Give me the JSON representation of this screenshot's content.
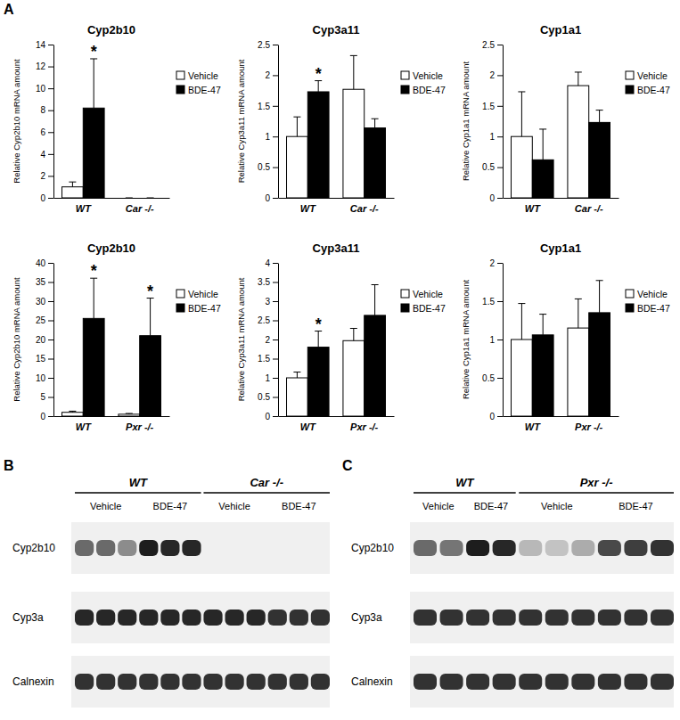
{
  "panel_labels": [
    "A",
    "B",
    "C"
  ],
  "chart_data": [
    {
      "type": "bar",
      "title": "Cyp2b10",
      "y_label": "Relative Cyp2b10 mRNA amount",
      "categories": [
        "WT",
        "Car -/-"
      ],
      "series": [
        {
          "name": "Vehicle",
          "color": "#ffffff",
          "values": [
            1.0,
            0
          ],
          "errors": [
            0.45,
            0
          ]
        },
        {
          "name": "BDE-47",
          "color": "#000000",
          "values": [
            8.2,
            0
          ],
          "errors": [
            4.5,
            0
          ]
        }
      ],
      "ylim": [
        0,
        14
      ],
      "yticks": [
        0,
        2,
        4,
        6,
        8,
        10,
        12,
        14
      ],
      "legend": "right",
      "annotations": [
        {
          "text": "*",
          "series": 1,
          "category": 0
        }
      ]
    },
    {
      "type": "bar",
      "title": "Cyp3a11",
      "y_label": "Relative Cyp3a11 mRNA amount",
      "categories": [
        "WT",
        "Car -/-"
      ],
      "series": [
        {
          "name": "Vehicle",
          "color": "#ffffff",
          "values": [
            1.0,
            1.77
          ],
          "errors": [
            0.32,
            0.55
          ]
        },
        {
          "name": "BDE-47",
          "color": "#000000",
          "values": [
            1.73,
            1.14
          ],
          "errors": [
            0.18,
            0.15
          ]
        }
      ],
      "ylim": [
        0,
        2.5
      ],
      "yticks": [
        0,
        0.5,
        1,
        1.5,
        2,
        2.5
      ],
      "legend": "right",
      "annotations": [
        {
          "text": "*",
          "series": 1,
          "category": 0
        }
      ]
    },
    {
      "type": "bar",
      "title": "Cyp1a1",
      "y_label": "Relative Cyp1a1 mRNA amount",
      "categories": [
        "WT",
        "Car -/-"
      ],
      "series": [
        {
          "name": "Vehicle",
          "color": "#ffffff",
          "values": [
            1.0,
            1.83
          ],
          "errors": [
            0.73,
            0.22
          ]
        },
        {
          "name": "BDE-47",
          "color": "#000000",
          "values": [
            0.62,
            1.23
          ],
          "errors": [
            0.5,
            0.2
          ]
        }
      ],
      "ylim": [
        0,
        2.5
      ],
      "yticks": [
        0,
        0.5,
        1,
        1.5,
        2,
        2.5
      ],
      "legend": "right",
      "annotations": []
    },
    {
      "type": "bar",
      "title": "Cyp2b10",
      "y_label": "Relative Cyp2b10 mRNA amount",
      "categories": [
        "WT",
        "Pxr -/-"
      ],
      "series": [
        {
          "name": "Vehicle",
          "color": "#ffffff",
          "values": [
            1.0,
            0.5
          ],
          "errors": [
            0.3,
            0.2
          ]
        },
        {
          "name": "BDE-47",
          "color": "#000000",
          "values": [
            25.5,
            21
          ],
          "errors": [
            10.5,
            9.8
          ]
        }
      ],
      "ylim": [
        0,
        40
      ],
      "yticks": [
        0,
        5,
        10,
        15,
        20,
        25,
        30,
        35,
        40
      ],
      "legend": "right",
      "annotations": [
        {
          "text": "*",
          "series": 1,
          "category": 0
        },
        {
          "text": "*",
          "series": 1,
          "category": 1
        }
      ]
    },
    {
      "type": "bar",
      "title": "Cyp3a11",
      "y_label": "Relative Cyp3a11 mRNA amount",
      "categories": [
        "WT",
        "Pxr -/-"
      ],
      "series": [
        {
          "name": "Vehicle",
          "color": "#ffffff",
          "values": [
            1.0,
            1.97
          ],
          "errors": [
            0.15,
            0.32
          ]
        },
        {
          "name": "BDE-47",
          "color": "#000000",
          "values": [
            1.8,
            2.63
          ],
          "errors": [
            0.42,
            0.8
          ]
        }
      ],
      "ylim": [
        0,
        4
      ],
      "yticks": [
        0,
        0.5,
        1,
        1.5,
        2,
        2.5,
        3,
        3.5,
        4
      ],
      "legend": "right",
      "annotations": [
        {
          "text": "*",
          "series": 1,
          "category": 0
        }
      ]
    },
    {
      "type": "bar",
      "title": "Cyp1a1",
      "y_label": "Relative Cyp1a1 mRNA amount",
      "categories": [
        "WT",
        "Pxr -/-"
      ],
      "series": [
        {
          "name": "Vehicle",
          "color": "#ffffff",
          "values": [
            1.0,
            1.15
          ],
          "errors": [
            0.47,
            0.38
          ]
        },
        {
          "name": "BDE-47",
          "color": "#000000",
          "values": [
            1.06,
            1.35
          ],
          "errors": [
            0.27,
            0.42
          ]
        }
      ],
      "ylim": [
        0,
        2
      ],
      "yticks": [
        0,
        0.5,
        1,
        1.5,
        2
      ],
      "legend": "right",
      "annotations": []
    }
  ],
  "blots": [
    {
      "groups": [
        {
          "label": "WT",
          "treatments": [
            {
              "label": "Vehicle",
              "lanes": 3
            },
            {
              "label": "BDE-47",
              "lanes": 3
            }
          ]
        },
        {
          "label": "Car -/-",
          "treatments": [
            {
              "label": "Vehicle",
              "lanes": 3
            },
            {
              "label": "BDE-47",
              "lanes": 3
            }
          ]
        }
      ],
      "rows": [
        {
          "label": "Cyp2b10",
          "intensity": [
            0.6,
            0.6,
            0.45,
            0.95,
            0.9,
            0.9,
            0,
            0,
            0,
            0,
            0,
            0
          ]
        },
        {
          "label": "Cyp3a",
          "intensity": [
            0.9,
            0.9,
            0.9,
            0.9,
            0.9,
            0.9,
            0.9,
            0.9,
            0.9,
            0.85,
            0.85,
            0.85
          ]
        },
        {
          "label": "Calnexin",
          "intensity": [
            0.85,
            0.85,
            0.85,
            0.85,
            0.85,
            0.85,
            0.85,
            0.85,
            0.85,
            0.85,
            0.85,
            0.85
          ]
        }
      ]
    },
    {
      "groups": [
        {
          "label": "WT",
          "treatments": [
            {
              "label": "Vehicle",
              "lanes": 2
            },
            {
              "label": "BDE-47",
              "lanes": 2
            }
          ]
        },
        {
          "label": "Pxr -/-",
          "treatments": [
            {
              "label": "Vehicle",
              "lanes": 3
            },
            {
              "label": "BDE-47",
              "lanes": 3
            }
          ]
        }
      ],
      "rows": [
        {
          "label": "Cyp2b10",
          "intensity": [
            0.6,
            0.55,
            0.95,
            0.9,
            0.25,
            0.2,
            0.3,
            0.75,
            0.8,
            0.85
          ]
        },
        {
          "label": "Cyp3a",
          "intensity": [
            0.85,
            0.85,
            0.85,
            0.85,
            0.85,
            0.85,
            0.85,
            0.85,
            0.85,
            0.85
          ]
        },
        {
          "label": "Calnexin",
          "intensity": [
            0.85,
            0.85,
            0.85,
            0.85,
            0.85,
            0.85,
            0.85,
            0.85,
            0.85,
            0.85
          ]
        }
      ]
    }
  ]
}
